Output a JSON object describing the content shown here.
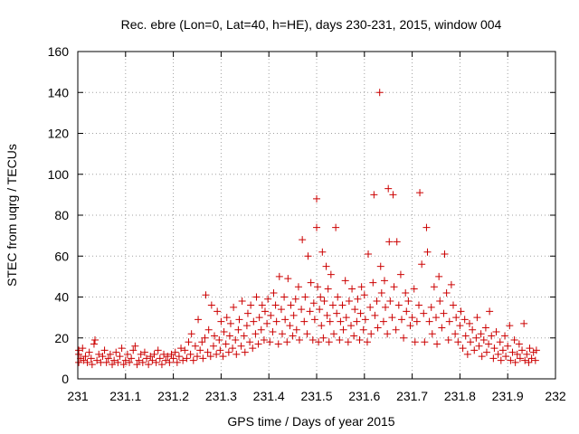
{
  "chart_data": {
    "type": "scatter",
    "title": "Rec. ebre (Lon=0, Lat=40, h=HE), days 230-231, 2015, window 004",
    "xlabel": "GPS time / Days of year 2015",
    "ylabel": "STEC from uqrg / TECUs",
    "xlim": [
      231,
      232
    ],
    "ylim": [
      0,
      160
    ],
    "x_ticks": [
      231,
      231.1,
      231.2,
      231.3,
      231.4,
      231.5,
      231.6,
      231.7,
      231.8,
      231.9,
      232
    ],
    "x_tick_labels": [
      "231",
      "231.1",
      "231.2",
      "231.3",
      "231.4",
      "231.5",
      "231.6",
      "231.7",
      "231.8",
      "231.9",
      "232"
    ],
    "y_ticks": [
      0,
      20,
      40,
      60,
      80,
      100,
      120,
      140,
      160
    ],
    "y_tick_labels": [
      "0",
      "20",
      "40",
      "60",
      "80",
      "100",
      "120",
      "140",
      "160"
    ],
    "grid": true,
    "marker": "plus",
    "color": "#cc0000",
    "points": [
      [
        231.002,
        8
      ],
      [
        231.002,
        12
      ],
      [
        231.002,
        14
      ],
      [
        231.006,
        10
      ],
      [
        231.01,
        15
      ],
      [
        231.012,
        9
      ],
      [
        231.016,
        11
      ],
      [
        231.02,
        8
      ],
      [
        231.024,
        13
      ],
      [
        231.028,
        10
      ],
      [
        231.03,
        7
      ],
      [
        231.034,
        17
      ],
      [
        231.036,
        19
      ],
      [
        231.04,
        9
      ],
      [
        231.044,
        12
      ],
      [
        231.048,
        8
      ],
      [
        231.052,
        11
      ],
      [
        231.056,
        14
      ],
      [
        231.06,
        8
      ],
      [
        231.064,
        10
      ],
      [
        231.068,
        12
      ],
      [
        231.072,
        7
      ],
      [
        231.076,
        9
      ],
      [
        231.08,
        13
      ],
      [
        231.084,
        8
      ],
      [
        231.088,
        11
      ],
      [
        231.092,
        15
      ],
      [
        231.096,
        7
      ],
      [
        231.1,
        9
      ],
      [
        231.104,
        12
      ],
      [
        231.108,
        8
      ],
      [
        231.112,
        10
      ],
      [
        231.116,
        14
      ],
      [
        231.12,
        16
      ],
      [
        231.124,
        7
      ],
      [
        231.128,
        9
      ],
      [
        231.132,
        12
      ],
      [
        231.136,
        8
      ],
      [
        231.14,
        13
      ],
      [
        231.144,
        10
      ],
      [
        231.148,
        7
      ],
      [
        231.152,
        11
      ],
      [
        231.156,
        9
      ],
      [
        231.16,
        12
      ],
      [
        231.164,
        8
      ],
      [
        231.168,
        14
      ],
      [
        231.172,
        10
      ],
      [
        231.176,
        7
      ],
      [
        231.18,
        12
      ],
      [
        231.184,
        9
      ],
      [
        231.188,
        11
      ],
      [
        231.192,
        8
      ],
      [
        231.196,
        12
      ],
      [
        231.2,
        10
      ],
      [
        231.204,
        13
      ],
      [
        231.208,
        8
      ],
      [
        231.212,
        11
      ],
      [
        231.216,
        15
      ],
      [
        231.22,
        9
      ],
      [
        231.224,
        14
      ],
      [
        231.228,
        10
      ],
      [
        231.232,
        18
      ],
      [
        231.236,
        12
      ],
      [
        231.238,
        22
      ],
      [
        231.242,
        9
      ],
      [
        231.246,
        16
      ],
      [
        231.25,
        11
      ],
      [
        231.252,
        29
      ],
      [
        231.256,
        14
      ],
      [
        231.26,
        18
      ],
      [
        231.262,
        10
      ],
      [
        231.266,
        20
      ],
      [
        231.268,
        41
      ],
      [
        231.272,
        13
      ],
      [
        231.274,
        24
      ],
      [
        231.278,
        11
      ],
      [
        231.28,
        36
      ],
      [
        231.284,
        16
      ],
      [
        231.286,
        21
      ],
      [
        231.29,
        12
      ],
      [
        231.292,
        33
      ],
      [
        231.296,
        19
      ],
      [
        231.298,
        14
      ],
      [
        231.3,
        28
      ],
      [
        231.304,
        11
      ],
      [
        231.306,
        23
      ],
      [
        231.31,
        17
      ],
      [
        231.312,
        30
      ],
      [
        231.316,
        13
      ],
      [
        231.318,
        21
      ],
      [
        231.32,
        27
      ],
      [
        231.324,
        15
      ],
      [
        231.326,
        35
      ],
      [
        231.33,
        19
      ],
      [
        231.332,
        12
      ],
      [
        231.336,
        24
      ],
      [
        231.338,
        29
      ],
      [
        231.342,
        16
      ],
      [
        231.344,
        38
      ],
      [
        231.348,
        21
      ],
      [
        231.35,
        13
      ],
      [
        231.354,
        26
      ],
      [
        231.356,
        32
      ],
      [
        231.36,
        18
      ],
      [
        231.362,
        36
      ],
      [
        231.366,
        15
      ],
      [
        231.368,
        28
      ],
      [
        231.372,
        22
      ],
      [
        231.374,
        40
      ],
      [
        231.378,
        17
      ],
      [
        231.38,
        30
      ],
      [
        231.384,
        24
      ],
      [
        231.386,
        36
      ],
      [
        231.39,
        19
      ],
      [
        231.392,
        33
      ],
      [
        231.396,
        27
      ],
      [
        231.398,
        39
      ],
      [
        231.402,
        18
      ],
      [
        231.404,
        31
      ],
      [
        231.408,
        23
      ],
      [
        231.41,
        42
      ],
      [
        231.414,
        36
      ],
      [
        231.416,
        28
      ],
      [
        231.42,
        17
      ],
      [
        231.422,
        50
      ],
      [
        231.426,
        34
      ],
      [
        231.428,
        22
      ],
      [
        231.432,
        40
      ],
      [
        231.434,
        29
      ],
      [
        231.438,
        18
      ],
      [
        231.44,
        49
      ],
      [
        231.444,
        26
      ],
      [
        231.446,
        36
      ],
      [
        231.45,
        21
      ],
      [
        231.452,
        31
      ],
      [
        231.456,
        39
      ],
      [
        231.458,
        24
      ],
      [
        231.462,
        45
      ],
      [
        231.464,
        19
      ],
      [
        231.468,
        34
      ],
      [
        231.47,
        68
      ],
      [
        231.474,
        28
      ],
      [
        231.476,
        40
      ],
      [
        231.48,
        22
      ],
      [
        231.482,
        60
      ],
      [
        231.486,
        33
      ],
      [
        231.488,
        47
      ],
      [
        231.492,
        19
      ],
      [
        231.494,
        37
      ],
      [
        231.496,
        29
      ],
      [
        231.5,
        88
      ],
      [
        231.5,
        74
      ],
      [
        231.502,
        45
      ],
      [
        231.504,
        18
      ],
      [
        231.506,
        34
      ],
      [
        231.508,
        40
      ],
      [
        231.51,
        26
      ],
      [
        231.512,
        62
      ],
      [
        231.514,
        20
      ],
      [
        231.516,
        38
      ],
      [
        231.52,
        55
      ],
      [
        231.522,
        31
      ],
      [
        231.524,
        44
      ],
      [
        231.526,
        18
      ],
      [
        231.528,
        28
      ],
      [
        231.53,
        51
      ],
      [
        231.534,
        36
      ],
      [
        231.536,
        22
      ],
      [
        231.54,
        74
      ],
      [
        231.542,
        32
      ],
      [
        231.544,
        40
      ],
      [
        231.548,
        19
      ],
      [
        231.55,
        28
      ],
      [
        231.554,
        36
      ],
      [
        231.556,
        24
      ],
      [
        231.56,
        48
      ],
      [
        231.562,
        30
      ],
      [
        231.566,
        18
      ],
      [
        231.568,
        38
      ],
      [
        231.572,
        26
      ],
      [
        231.574,
        44
      ],
      [
        231.578,
        21
      ],
      [
        231.58,
        34
      ],
      [
        231.584,
        28
      ],
      [
        231.586,
        39
      ],
      [
        231.59,
        19
      ],
      [
        231.592,
        32
      ],
      [
        231.594,
        45
      ],
      [
        231.598,
        24
      ],
      [
        231.6,
        41
      ],
      [
        231.602,
        29
      ],
      [
        231.606,
        18
      ],
      [
        231.608,
        61
      ],
      [
        231.612,
        35
      ],
      [
        231.614,
        22
      ],
      [
        231.618,
        47
      ],
      [
        231.62,
        90
      ],
      [
        231.622,
        31
      ],
      [
        231.626,
        38
      ],
      [
        231.628,
        25
      ],
      [
        231.632,
        140
      ],
      [
        231.634,
        55
      ],
      [
        231.636,
        42
      ],
      [
        231.64,
        28
      ],
      [
        231.642,
        48
      ],
      [
        231.644,
        35
      ],
      [
        231.648,
        22
      ],
      [
        231.65,
        93
      ],
      [
        231.652,
        67
      ],
      [
        231.654,
        38
      ],
      [
        231.658,
        30
      ],
      [
        231.66,
        90
      ],
      [
        231.662,
        45
      ],
      [
        231.666,
        24
      ],
      [
        231.668,
        67
      ],
      [
        231.672,
        36
      ],
      [
        231.676,
        51
      ],
      [
        231.678,
        29
      ],
      [
        231.682,
        20
      ],
      [
        231.686,
        42
      ],
      [
        231.688,
        33
      ],
      [
        231.692,
        38
      ],
      [
        231.696,
        26
      ],
      [
        231.7,
        30
      ],
      [
        231.704,
        44
      ],
      [
        231.706,
        18
      ],
      [
        231.71,
        28
      ],
      [
        231.714,
        36
      ],
      [
        231.716,
        91
      ],
      [
        231.72,
        56
      ],
      [
        231.724,
        32
      ],
      [
        231.726,
        18
      ],
      [
        231.73,
        74
      ],
      [
        231.732,
        62
      ],
      [
        231.736,
        28
      ],
      [
        231.74,
        35
      ],
      [
        231.742,
        22
      ],
      [
        231.746,
        45
      ],
      [
        231.75,
        30
      ],
      [
        231.752,
        17
      ],
      [
        231.756,
        50
      ],
      [
        231.758,
        38
      ],
      [
        231.762,
        25
      ],
      [
        231.766,
        32
      ],
      [
        231.768,
        61
      ],
      [
        231.772,
        42
      ],
      [
        231.776,
        19
      ],
      [
        231.778,
        28
      ],
      [
        231.782,
        46
      ],
      [
        231.786,
        36
      ],
      [
        231.79,
        22
      ],
      [
        231.792,
        30
      ],
      [
        231.796,
        18
      ],
      [
        231.8,
        26
      ],
      [
        231.802,
        33
      ],
      [
        231.806,
        15
      ],
      [
        231.81,
        29
      ],
      [
        231.812,
        21
      ],
      [
        231.816,
        12
      ],
      [
        231.82,
        27
      ],
      [
        231.822,
        18
      ],
      [
        231.826,
        24
      ],
      [
        231.83,
        14
      ],
      [
        231.834,
        20
      ],
      [
        231.836,
        30
      ],
      [
        231.84,
        16
      ],
      [
        231.844,
        22
      ],
      [
        231.846,
        11
      ],
      [
        231.85,
        19
      ],
      [
        231.854,
        25
      ],
      [
        231.856,
        13
      ],
      [
        231.86,
        17
      ],
      [
        231.862,
        33
      ],
      [
        231.866,
        21
      ],
      [
        231.87,
        10
      ],
      [
        231.872,
        15
      ],
      [
        231.876,
        23
      ],
      [
        231.88,
        12
      ],
      [
        231.884,
        18
      ],
      [
        231.886,
        9
      ],
      [
        231.89,
        14
      ],
      [
        231.894,
        21
      ],
      [
        231.896,
        11
      ],
      [
        231.9,
        16
      ],
      [
        231.904,
        26
      ],
      [
        231.906,
        9
      ],
      [
        231.91,
        13
      ],
      [
        231.914,
        19
      ],
      [
        231.916,
        8
      ],
      [
        231.92,
        12
      ],
      [
        231.924,
        17
      ],
      [
        231.926,
        10
      ],
      [
        231.93,
        14
      ],
      [
        231.934,
        27
      ],
      [
        231.936,
        9
      ],
      [
        231.94,
        12
      ],
      [
        231.944,
        8
      ],
      [
        231.946,
        15
      ],
      [
        231.95,
        10
      ],
      [
        231.954,
        13
      ],
      [
        231.958,
        9
      ],
      [
        231.96,
        14
      ]
    ]
  }
}
